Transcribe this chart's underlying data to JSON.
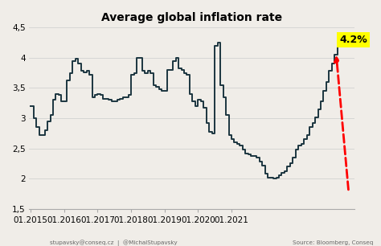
{
  "title": "Average global inflation rate",
  "ylim": [
    1.5,
    4.5
  ],
  "yticks": [
    1.5,
    2.0,
    2.5,
    3.0,
    3.5,
    4.0,
    4.5
  ],
  "ytick_labels": [
    "1,5",
    "2",
    "2,5",
    "3",
    "3,5",
    "4",
    "4,5"
  ],
  "line_color": "#1c3640",
  "line_width": 1.4,
  "annotation_text": "4.2%",
  "annotation_bg": "#ffff00",
  "arrow_color": "red",
  "footer_left": "stupavsky@conseq.cz  |  @MichalStupavsky",
  "footer_right": "Source: Bloomberg, Conseq",
  "background_color": "#f0ede8",
  "values": [
    3.2,
    3.0,
    2.85,
    2.72,
    2.72,
    2.8,
    2.95,
    3.05,
    3.3,
    3.4,
    3.38,
    3.28,
    3.28,
    3.62,
    3.75,
    3.95,
    3.98,
    3.9,
    3.78,
    3.76,
    3.78,
    3.72,
    3.35,
    3.38,
    3.4,
    3.38,
    3.32,
    3.32,
    3.3,
    3.28,
    3.28,
    3.3,
    3.32,
    3.35,
    3.35,
    3.38,
    3.72,
    3.75,
    4.0,
    4.0,
    3.78,
    3.75,
    3.78,
    3.75,
    3.55,
    3.52,
    3.48,
    3.45,
    3.45,
    3.8,
    3.8,
    3.95,
    4.0,
    3.82,
    3.8,
    3.75,
    3.72,
    3.4,
    3.28,
    3.2,
    3.3,
    3.28,
    3.18,
    2.92,
    2.78,
    2.75,
    4.2,
    4.25,
    3.55,
    3.35,
    3.05,
    2.72,
    2.65,
    2.6,
    2.58,
    2.55,
    2.48,
    2.42,
    2.4,
    2.38,
    2.38,
    2.35,
    2.28,
    2.22,
    2.08,
    2.02,
    2.02,
    2.0,
    2.02,
    2.05,
    2.1,
    2.12,
    2.2,
    2.25,
    2.35,
    2.48,
    2.55,
    2.58,
    2.65,
    2.72,
    2.85,
    2.92,
    3.02,
    3.15,
    3.28,
    3.45,
    3.6,
    3.78,
    3.9,
    4.05,
    4.2
  ],
  "xtick_months": [
    0,
    12,
    24,
    36,
    48,
    60,
    72
  ],
  "xtick_labels": [
    "01.2015",
    "01.2016",
    "01.2017",
    "01.2018",
    "01.2019",
    "01.2020",
    "01.2021"
  ]
}
